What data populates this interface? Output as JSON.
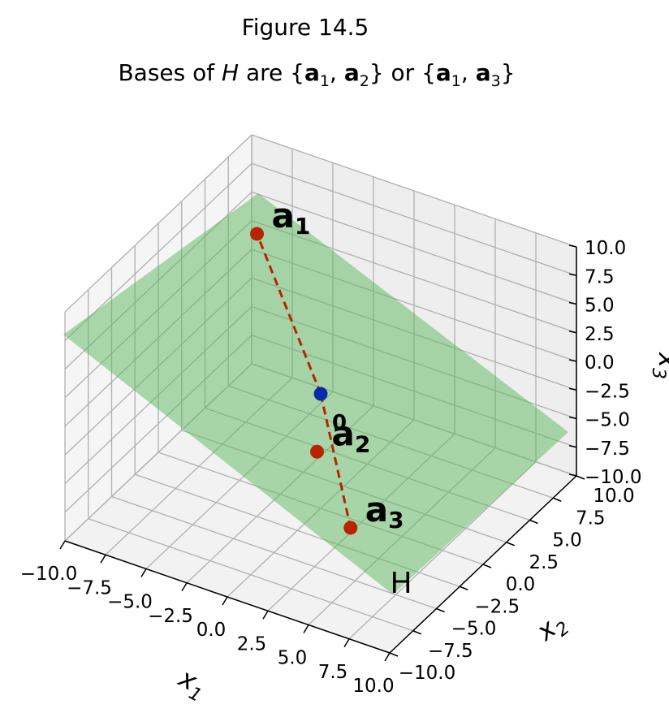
{
  "chart_data": {
    "type": "scatter",
    "suptitle": "Figure 14.5",
    "title": {
      "prefix": "Bases of ",
      "italic": "H",
      "middle": " are {",
      "mid2": "} or {",
      "suffix": "}",
      "basis1": [
        "a",
        "1",
        "a",
        "2"
      ],
      "basis2": [
        "a",
        "1",
        "a",
        "3"
      ]
    },
    "xlabel": {
      "base": "x",
      "sub": "1"
    },
    "ylabel": {
      "base": "x",
      "sub": "2"
    },
    "zlabel": {
      "base": "x",
      "sub": "3"
    },
    "xlim": [
      -10,
      10
    ],
    "ylim": [
      -10,
      10
    ],
    "zlim": [
      -10,
      10
    ],
    "ticks": [
      -10.0,
      -7.5,
      -5.0,
      -2.5,
      0.0,
      2.5,
      5.0,
      7.5,
      10.0
    ],
    "tick_labels": [
      "−10.0",
      "−7.5",
      "−5.0",
      "−2.5",
      "0.0",
      "2.5",
      "5.0",
      "7.5",
      "10.0"
    ],
    "grid": true,
    "plane": {
      "label": "H",
      "color": "#5cb85c"
    },
    "points": [
      {
        "name": "0",
        "x": 0,
        "y": 0,
        "z": 0,
        "color": "#0a2aa8"
      },
      {
        "name": "a1",
        "label_base": "a",
        "label_sub": "1",
        "x": -4.5,
        "y": 1,
        "z": 11,
        "color": "#b82400"
      },
      {
        "name": "a2",
        "label_base": "a",
        "label_sub": "2",
        "x": 1.5,
        "y": -3,
        "z": -2,
        "color": "#b82400"
      },
      {
        "name": "a3",
        "label_base": "a",
        "label_sub": "3",
        "x": 5,
        "y": -5.5,
        "z": -5,
        "color": "#b82400"
      }
    ],
    "line_color": "#b82400"
  }
}
